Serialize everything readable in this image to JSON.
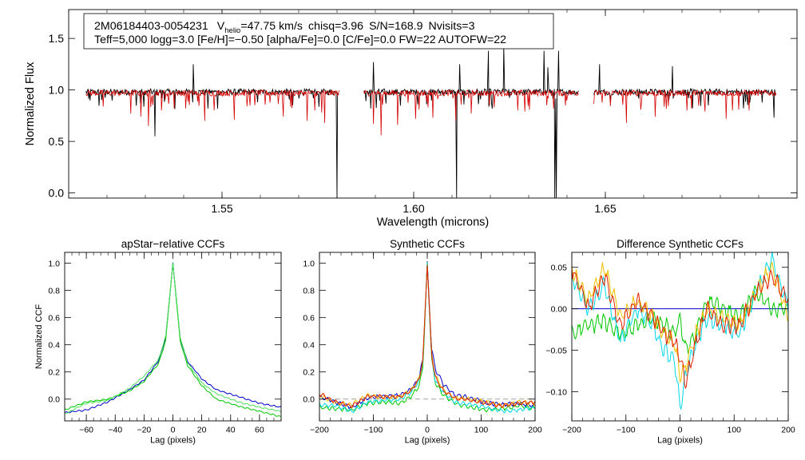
{
  "header": {
    "star_id": "2M06184403-0054231",
    "vhelio_label": "V",
    "vhelio_sub": "helio",
    "vhelio_value": "=47.75 km/s",
    "chisq": "chisq=3.96",
    "snr": "S/N=168.9",
    "nvisits": "Nvisits=3",
    "line2": "Teff=5,000 logg=3.0 [Fe/H]=−0.50 [alpha/Fe]=0.0 [C/Fe]=0.0 FW=22 AUTOFW=22"
  },
  "chart_data": [
    {
      "id": "spectrum",
      "type": "line",
      "title": "",
      "xlabel": "Wavelength (microns)",
      "ylabel": "Normalized Flux",
      "xlim": [
        1.51,
        1.7
      ],
      "ylim": [
        -0.05,
        1.78
      ],
      "xticks": [
        1.55,
        1.6,
        1.65
      ],
      "xtick_labels": [
        "1.55",
        "1.60",
        "1.65"
      ],
      "yticks": [
        0.0,
        0.5,
        1.0,
        1.5
      ],
      "ytick_labels": [
        "0.0",
        "0.5",
        "1.0",
        "1.5"
      ],
      "segments": [
        [
          1.5145,
          1.5805
        ],
        [
          1.587,
          1.643
        ],
        [
          1.647,
          1.6945
        ]
      ],
      "series": [
        {
          "name": "observed",
          "color": "#000000",
          "continuum": 0.98,
          "features": [
            [
              1.5325,
              1.34
            ],
            [
              1.5325,
              0.55
            ],
            [
              1.5425,
              1.25
            ],
            [
              1.58,
              -0.05
            ],
            [
              1.5895,
              1.27
            ],
            [
              1.6112,
              -0.05
            ],
            [
              1.612,
              1.25
            ],
            [
              1.6195,
              1.38
            ],
            [
              1.6235,
              1.42
            ],
            [
              1.634,
              1.38
            ],
            [
              1.635,
              1.22
            ],
            [
              1.6368,
              -0.05
            ],
            [
              1.6372,
              -0.05
            ],
            [
              1.6378,
              1.38
            ],
            [
              1.6485,
              1.25
            ],
            [
              1.6675,
              1.23
            ],
            [
              1.694,
              0.73
            ]
          ]
        },
        {
          "name": "model",
          "color": "#d40000",
          "continuum": 0.97,
          "features": [
            [
              1.5262,
              0.77
            ],
            [
              1.5288,
              0.74
            ],
            [
              1.5308,
              0.65
            ],
            [
              1.5342,
              0.8
            ],
            [
              1.5405,
              0.82
            ],
            [
              1.5455,
              0.7
            ],
            [
              1.5532,
              0.71
            ],
            [
              1.5565,
              0.84
            ],
            [
              1.566,
              0.74
            ],
            [
              1.5722,
              0.7
            ],
            [
              1.576,
              0.78
            ],
            [
              1.5768,
              0.68
            ],
            [
              1.5895,
              0.67
            ],
            [
              1.5915,
              0.56
            ],
            [
              1.5958,
              0.66
            ],
            [
              1.6005,
              0.72
            ],
            [
              1.605,
              0.73
            ],
            [
              1.611,
              0.7
            ],
            [
              1.615,
              0.77
            ],
            [
              1.621,
              0.83
            ],
            [
              1.629,
              0.79
            ],
            [
              1.6365,
              0.82
            ],
            [
              1.6555,
              0.68
            ],
            [
              1.663,
              0.74
            ],
            [
              1.6725,
              0.82
            ],
            [
              1.676,
              0.79
            ],
            [
              1.6815,
              0.72
            ],
            [
              1.6875,
              0.8
            ]
          ]
        }
      ]
    },
    {
      "id": "apstar-ccf",
      "type": "line",
      "title": "apStar−relative CCFs",
      "xlabel": "Lag (pixels)",
      "ylabel": "Normalized CCF",
      "xlim": [
        -75,
        75
      ],
      "ylim": [
        -0.16,
        1.08
      ],
      "xticks": [
        -60,
        -40,
        -20,
        0,
        20,
        40,
        60
      ],
      "xtick_labels": [
        "−60",
        "−40",
        "−20",
        "0",
        "20",
        "40",
        "60"
      ],
      "yticks": [
        0.0,
        0.2,
        0.4,
        0.6,
        0.8,
        1.0
      ],
      "ytick_labels": [
        "0.0",
        "0.2",
        "0.4",
        "0.6",
        "0.8",
        "1.0"
      ],
      "series": [
        {
          "name": "visit-1",
          "color": "#0000c8",
          "x": [
            -75,
            -60,
            -45,
            -30,
            -20,
            -10,
            -5,
            0,
            5,
            10,
            20,
            30,
            45,
            60,
            75
          ],
          "y": [
            -0.1,
            -0.08,
            -0.02,
            0.07,
            0.14,
            0.28,
            0.45,
            1.0,
            0.45,
            0.28,
            0.15,
            0.07,
            0.02,
            -0.03,
            -0.06
          ]
        },
        {
          "name": "visit-2",
          "color": "#00c800",
          "x": [
            -75,
            -60,
            -45,
            -30,
            -20,
            -10,
            -5,
            0,
            5,
            10,
            20,
            30,
            45,
            60,
            75
          ],
          "y": [
            -0.08,
            -0.02,
            0.0,
            0.06,
            0.13,
            0.26,
            0.43,
            1.0,
            0.43,
            0.25,
            0.1,
            0.0,
            -0.05,
            -0.09,
            -0.13
          ]
        },
        {
          "name": "visit-3",
          "color": "#4de05a",
          "x": [
            -75,
            -60,
            -45,
            -30,
            -20,
            -10,
            -5,
            0,
            5,
            10,
            20,
            30,
            45,
            60,
            75
          ],
          "y": [
            -0.11,
            -0.03,
            -0.01,
            0.08,
            0.17,
            0.29,
            0.46,
            1.0,
            0.46,
            0.27,
            0.12,
            0.04,
            -0.02,
            -0.06,
            -0.09
          ]
        }
      ]
    },
    {
      "id": "synthetic-ccf",
      "type": "line",
      "title": "Synthetic CCFs",
      "xlabel": "Lag (pixels)",
      "ylabel": "",
      "xlim": [
        -200,
        200
      ],
      "ylim": [
        -0.16,
        1.08
      ],
      "xticks": [
        -200,
        -100,
        0,
        100,
        200
      ],
      "xtick_labels": [
        "−200",
        "−100",
        "0",
        "100",
        "200"
      ],
      "yticks": [
        0.0,
        0.2,
        0.4,
        0.6,
        0.8,
        1.0
      ],
      "ytick_labels": [
        "0.0",
        "0.2",
        "0.4",
        "0.6",
        "0.8",
        "1.0"
      ],
      "zero_line": true,
      "series": [
        {
          "name": "synth-1",
          "color": "#0000c8",
          "x": [
            -200,
            -170,
            -140,
            -110,
            -80,
            -50,
            -30,
            -15,
            -8,
            0,
            8,
            15,
            30,
            50,
            80,
            110,
            140,
            170,
            200
          ],
          "y": [
            0.02,
            -0.02,
            -0.06,
            0.01,
            0.02,
            0.03,
            0.07,
            0.16,
            0.3,
            1.0,
            0.38,
            0.22,
            0.11,
            0.03,
            0.01,
            -0.03,
            -0.04,
            -0.03,
            -0.05
          ]
        },
        {
          "name": "synth-2",
          "color": "#00c800",
          "x": [
            -200,
            -170,
            -140,
            -110,
            -80,
            -50,
            -30,
            -15,
            -8,
            0,
            8,
            15,
            30,
            50,
            80,
            110,
            140,
            170,
            200
          ],
          "y": [
            -0.06,
            -0.07,
            -0.08,
            -0.03,
            -0.02,
            -0.03,
            0.02,
            0.1,
            0.24,
            1.0,
            0.3,
            0.12,
            0.03,
            -0.03,
            -0.06,
            -0.08,
            -0.07,
            -0.05,
            -0.07
          ]
        },
        {
          "name": "synth-3",
          "color": "#00d8e8",
          "x": [
            -200,
            -170,
            -140,
            -110,
            -80,
            -50,
            -30,
            -15,
            -8,
            0,
            8,
            15,
            30,
            50,
            80,
            110,
            140,
            170,
            200
          ],
          "y": [
            -0.04,
            -0.05,
            -0.09,
            -0.02,
            -0.01,
            0.0,
            0.05,
            0.14,
            0.28,
            1.0,
            0.32,
            0.14,
            0.05,
            -0.02,
            -0.04,
            -0.06,
            -0.09,
            -0.08,
            -0.06
          ]
        },
        {
          "name": "synth-4",
          "color": "#f0c000",
          "x": [
            -200,
            -170,
            -140,
            -110,
            -80,
            -50,
            -30,
            -15,
            -8,
            0,
            8,
            15,
            30,
            50,
            80,
            110,
            140,
            170,
            200
          ],
          "y": [
            0.03,
            -0.03,
            -0.04,
            0.03,
            0.01,
            0.02,
            0.06,
            0.15,
            0.29,
            1.0,
            0.34,
            0.17,
            0.07,
            0.01,
            0.0,
            -0.02,
            -0.05,
            -0.02,
            -0.03
          ]
        },
        {
          "name": "synth-5",
          "color": "#e02000",
          "x": [
            -200,
            -170,
            -140,
            -110,
            -80,
            -50,
            -30,
            -15,
            -8,
            0,
            8,
            15,
            30,
            50,
            80,
            110,
            140,
            170,
            200
          ],
          "y": [
            0.04,
            -0.02,
            -0.05,
            0.02,
            0.02,
            0.02,
            0.06,
            0.15,
            0.29,
            1.0,
            0.33,
            0.16,
            0.06,
            0.01,
            -0.01,
            -0.03,
            -0.05,
            -0.03,
            -0.02
          ]
        }
      ]
    },
    {
      "id": "difference-ccf",
      "type": "line",
      "title": "Difference Synthetic CCFs",
      "xlabel": "Lag (pixels)",
      "ylabel": "",
      "xlim": [
        -200,
        200
      ],
      "ylim": [
        -0.135,
        0.068
      ],
      "xticks": [
        -200,
        -100,
        0,
        100,
        200
      ],
      "xtick_labels": [
        "−200",
        "−100",
        "0",
        "100",
        "200"
      ],
      "yticks": [
        0.05,
        0.0,
        -0.05,
        -0.1
      ],
      "ytick_labels": [
        "0.05",
        "0.00",
        "−0.05",
        "−0.10"
      ],
      "series": [
        {
          "name": "diff-1",
          "color": "#0000c8",
          "x": [
            -200,
            200
          ],
          "y": [
            0.0,
            0.0
          ]
        },
        {
          "name": "diff-2",
          "color": "#00c800",
          "x": [
            -200,
            -170,
            -140,
            -110,
            -80,
            -50,
            -30,
            -10,
            0,
            10,
            30,
            50,
            80,
            110,
            140,
            170,
            200
          ],
          "y": [
            -0.03,
            -0.02,
            -0.015,
            -0.03,
            -0.02,
            -0.01,
            -0.02,
            -0.03,
            -0.01,
            -0.05,
            -0.03,
            0.01,
            0.0,
            -0.01,
            0.02,
            0.0,
            0.0
          ]
        },
        {
          "name": "diff-3",
          "color": "#00d8e8",
          "x": [
            -200,
            -170,
            -140,
            -110,
            -80,
            -50,
            -30,
            -10,
            0,
            10,
            30,
            50,
            80,
            110,
            140,
            170,
            200
          ],
          "y": [
            0.04,
            0.0,
            0.03,
            -0.04,
            0.0,
            -0.02,
            -0.05,
            -0.06,
            -0.12,
            -0.08,
            -0.04,
            -0.01,
            -0.02,
            -0.03,
            0.02,
            0.06,
            0.0
          ]
        },
        {
          "name": "diff-4",
          "color": "#f0c000",
          "x": [
            -200,
            -170,
            -140,
            -110,
            -80,
            -50,
            -30,
            -10,
            0,
            10,
            30,
            50,
            80,
            110,
            140,
            170,
            200
          ],
          "y": [
            0.05,
            0.01,
            0.05,
            -0.01,
            0.01,
            -0.01,
            -0.03,
            -0.04,
            -0.08,
            -0.07,
            -0.03,
            0.0,
            -0.01,
            -0.02,
            0.02,
            0.05,
            -0.01
          ]
        },
        {
          "name": "diff-5",
          "color": "#e02000",
          "x": [
            -200,
            -170,
            -140,
            -110,
            -80,
            -50,
            -30,
            -10,
            0,
            10,
            30,
            50,
            80,
            110,
            140,
            170,
            200
          ],
          "y": [
            0.05,
            0.0,
            0.04,
            -0.02,
            0.01,
            -0.01,
            -0.03,
            -0.04,
            -0.06,
            -0.09,
            -0.04,
            0.0,
            -0.02,
            -0.02,
            0.02,
            0.04,
            0.01
          ]
        }
      ]
    }
  ]
}
